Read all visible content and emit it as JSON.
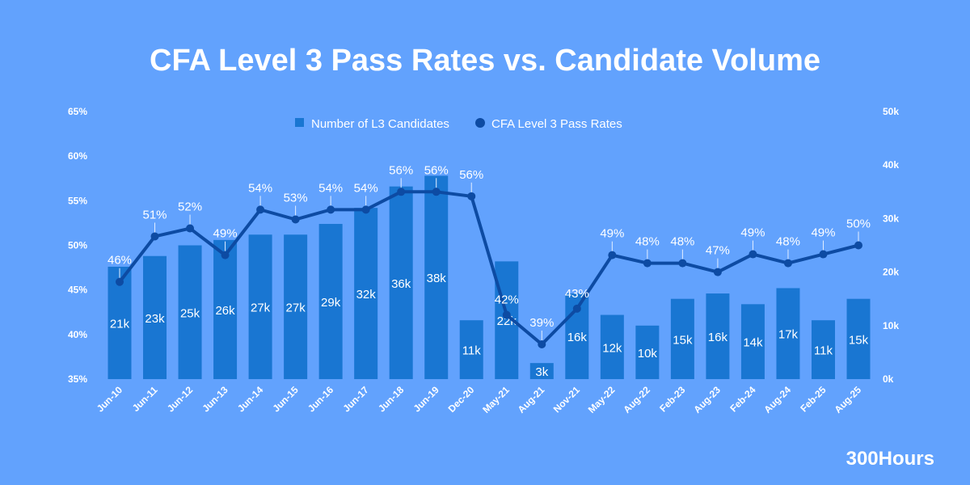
{
  "chart_data": {
    "type": "bar",
    "title": "CFA Level 3 Pass Rates vs. Candidate Volume",
    "categories": [
      "Jun-10",
      "Jun-11",
      "Jun-12",
      "Jun-13",
      "Jun-14",
      "Jun-15",
      "Jun-16",
      "Jun-17",
      "Jun-18",
      "Jun-19",
      "Dec-20",
      "May-21",
      "Aug-21",
      "Nov-21",
      "May-22",
      "Aug-22",
      "Feb-23",
      "Aug-23",
      "Feb-24",
      "Aug-24",
      "Feb-25",
      "Aug-25"
    ],
    "series": [
      {
        "name": "Number of L3 Candidates",
        "type": "bar",
        "axis": "right",
        "color": "#1976d2",
        "values": [
          21,
          23,
          25,
          26,
          27,
          27,
          29,
          32,
          36,
          38,
          11,
          22,
          3,
          16,
          12,
          10,
          15,
          16,
          14,
          17,
          11,
          15
        ],
        "labels": [
          "21k",
          "23k",
          "25k",
          "26k",
          "27k",
          "27k",
          "29k",
          "32k",
          "36k",
          "38k",
          "11k",
          "22k",
          "3k",
          "16k",
          "12k",
          "10k",
          "15k",
          "16k",
          "14k",
          "17k",
          "11k",
          "15k"
        ]
      },
      {
        "name": "CFA Level 3 Pass Rates",
        "type": "line",
        "axis": "left",
        "color": "#0d4ba3",
        "values": [
          45.9,
          51,
          51.9,
          48.9,
          54,
          52.9,
          54,
          54,
          56,
          56,
          55.5,
          42.2,
          38.9,
          42.9,
          48.9,
          48,
          48,
          47,
          49,
          48,
          49,
          50
        ],
        "labels": [
          "46%",
          "51%",
          "52%",
          "49%",
          "54%",
          "53%",
          "54%",
          "54%",
          "56%",
          "56%",
          "56%",
          "42%",
          "39%",
          "43%",
          "49%",
          "48%",
          "48%",
          "47%",
          "49%",
          "48%",
          "49%",
          "50%"
        ]
      }
    ],
    "left_axis": {
      "range": [
        35,
        65
      ],
      "ticks": [
        "35%",
        "40%",
        "45%",
        "50%",
        "55%",
        "60%",
        "65%"
      ]
    },
    "right_axis": {
      "range": [
        0,
        50
      ],
      "unit": "k",
      "ticks": [
        "0k",
        "10k",
        "20k",
        "30k",
        "40k",
        "50k"
      ]
    },
    "legend": "top-center",
    "grid": false
  },
  "logo": "300Hours",
  "background": "#62a2fd"
}
